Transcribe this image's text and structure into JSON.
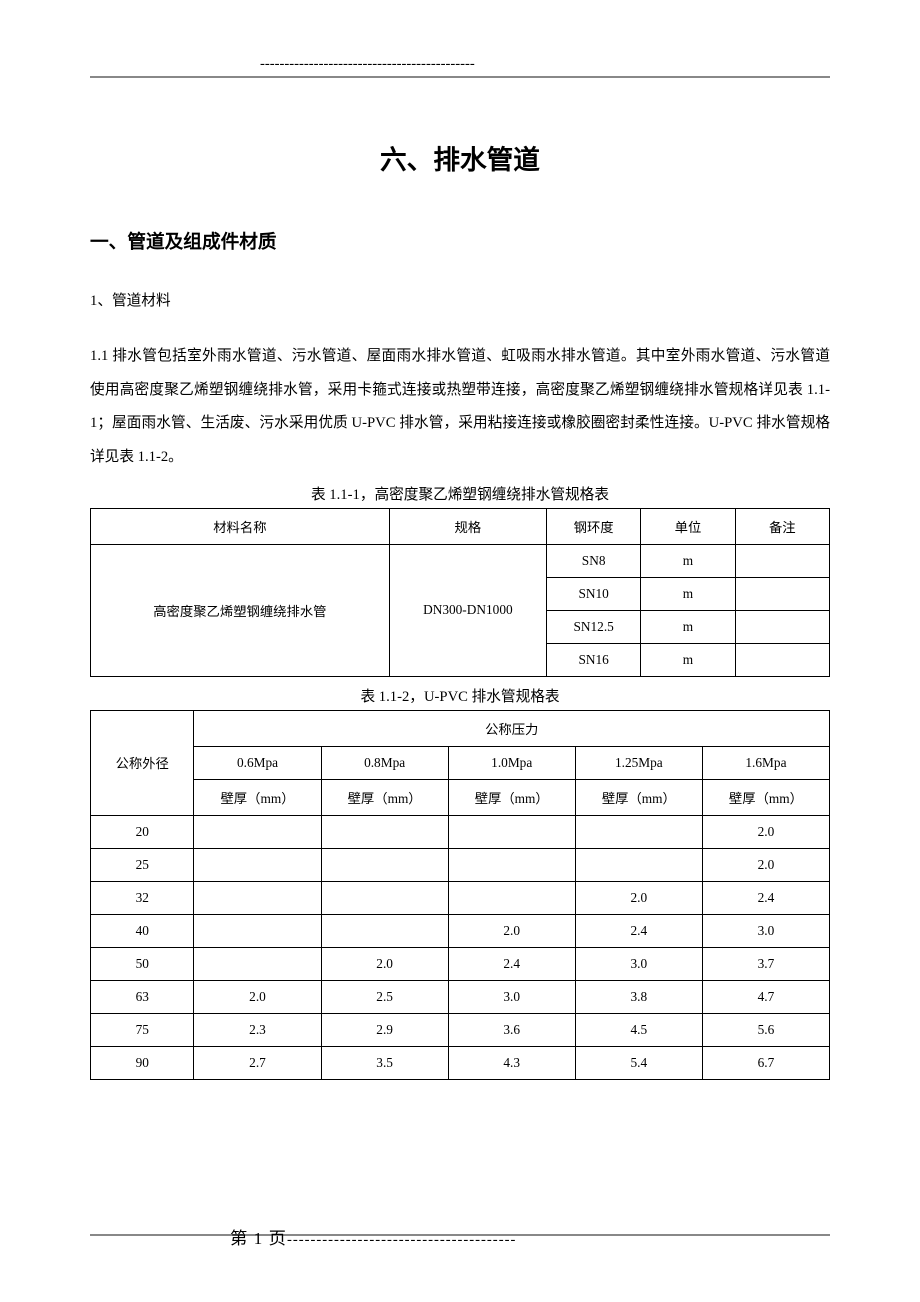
{
  "header": {
    "dashes": "--------------------------------------------"
  },
  "title": "六、排水管道",
  "section1": {
    "heading": "一、管道及组成件材质",
    "sub1": "1、管道材料",
    "para1": "1.1 排水管包括室外雨水管道、污水管道、屋面雨水排水管道、虹吸雨水排水管道。其中室外雨水管道、污水管道使用高密度聚乙烯塑钢缠绕排水管，采用卡箍式连接或热塑带连接，高密度聚乙烯塑钢缠绕排水管规格详见表 1.1-1；屋面雨水管、生活废、污水采用优质 U-PVC 排水管，采用粘接连接或橡胶圈密封柔性连接。U-PVC 排水管规格详见表 1.1-2。"
  },
  "table1": {
    "caption": "表 1.1-1，高密度聚乙烯塑钢缠绕排水管规格表",
    "headers": {
      "name": "材料名称",
      "spec": "规格",
      "ring": "钢环度",
      "unit": "单位",
      "note": "备注"
    },
    "material_name": "高密度聚乙烯塑钢缠绕排水管",
    "spec_value": "DN300-DN1000",
    "rows": [
      {
        "ring": "SN8",
        "unit": "m",
        "note": ""
      },
      {
        "ring": "SN10",
        "unit": "m",
        "note": ""
      },
      {
        "ring": "SN12.5",
        "unit": "m",
        "note": ""
      },
      {
        "ring": "SN16",
        "unit": "m",
        "note": ""
      }
    ]
  },
  "table2": {
    "caption": "表 1.1-2，U-PVC 排水管规格表",
    "headers": {
      "dn": "公称外径",
      "pressure": "公称压力",
      "p06": "0.6Mpa",
      "p08": "0.8Mpa",
      "p10": "1.0Mpa",
      "p125": "1.25Mpa",
      "p16": "1.6Mpa",
      "wall": "壁厚（mm）"
    },
    "rows": [
      {
        "dn": "20",
        "v": [
          "",
          "",
          "",
          "",
          "2.0"
        ]
      },
      {
        "dn": "25",
        "v": [
          "",
          "",
          "",
          "",
          "2.0"
        ]
      },
      {
        "dn": "32",
        "v": [
          "",
          "",
          "",
          "2.0",
          "2.4"
        ]
      },
      {
        "dn": "40",
        "v": [
          "",
          "",
          "2.0",
          "2.4",
          "3.0"
        ]
      },
      {
        "dn": "50",
        "v": [
          "",
          "2.0",
          "2.4",
          "3.0",
          "3.7"
        ]
      },
      {
        "dn": "63",
        "v": [
          "2.0",
          "2.5",
          "3.0",
          "3.8",
          "4.7"
        ]
      },
      {
        "dn": "75",
        "v": [
          "2.3",
          "2.9",
          "3.6",
          "4.5",
          "5.6"
        ]
      },
      {
        "dn": "90",
        "v": [
          "2.7",
          "3.5",
          "4.3",
          "5.4",
          "6.7"
        ]
      }
    ]
  },
  "footer": {
    "page_label": "第 1 页",
    "dashes": "---------------------------------------"
  }
}
